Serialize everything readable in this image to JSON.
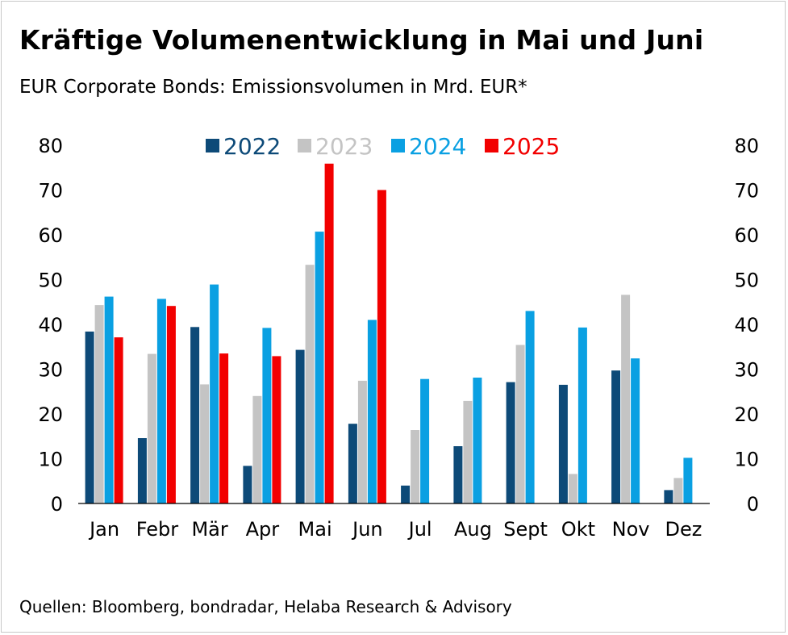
{
  "header": {
    "title": "Kräftige Volumenentwicklung in Mai und Juni",
    "subtitle": "EUR Corporate Bonds: Emissionsvolumen in Mrd. EUR*"
  },
  "footer": {
    "source": "Quellen: Bloomberg, bondradar, Helaba Research & Advisory"
  },
  "chart_data": {
    "type": "bar",
    "title": "Kräftige Volumenentwicklung in Mai und Juni",
    "subtitle": "EUR Corporate Bonds: Emissionsvolumen in Mrd. EUR*",
    "xlabel": "",
    "ylabel": "",
    "ylim": [
      0,
      80
    ],
    "yticks": [
      0,
      10,
      20,
      30,
      40,
      50,
      60,
      70,
      80
    ],
    "secondary_axis": true,
    "grid": false,
    "legend_position": "top-center",
    "categories": [
      "Jan",
      "Febr",
      "Mär",
      "Apr",
      "Mai",
      "Jun",
      "Jul",
      "Aug",
      "Sept",
      "Okt",
      "Nov",
      "Dez"
    ],
    "series": [
      {
        "name": "2022",
        "color": "#0d4a78",
        "values": [
          38.4,
          14.6,
          39.4,
          8.4,
          34.3,
          17.8,
          4.0,
          12.8,
          27.1,
          26.5,
          29.7,
          3.0
        ]
      },
      {
        "name": "2023",
        "color": "#c4c4c4",
        "values": [
          44.3,
          33.4,
          26.6,
          24.0,
          53.3,
          27.4,
          16.4,
          22.9,
          35.4,
          6.6,
          46.6,
          5.7
        ]
      },
      {
        "name": "2024",
        "color": "#0aa0e2",
        "values": [
          46.2,
          45.7,
          48.9,
          39.2,
          60.7,
          41.0,
          27.8,
          28.1,
          43.0,
          39.3,
          32.4,
          10.2
        ]
      },
      {
        "name": "2025",
        "color": "#f20000",
        "values": [
          37.1,
          44.1,
          33.5,
          32.9,
          75.9,
          70.0,
          null,
          null,
          null,
          null,
          null,
          null
        ]
      }
    ]
  }
}
